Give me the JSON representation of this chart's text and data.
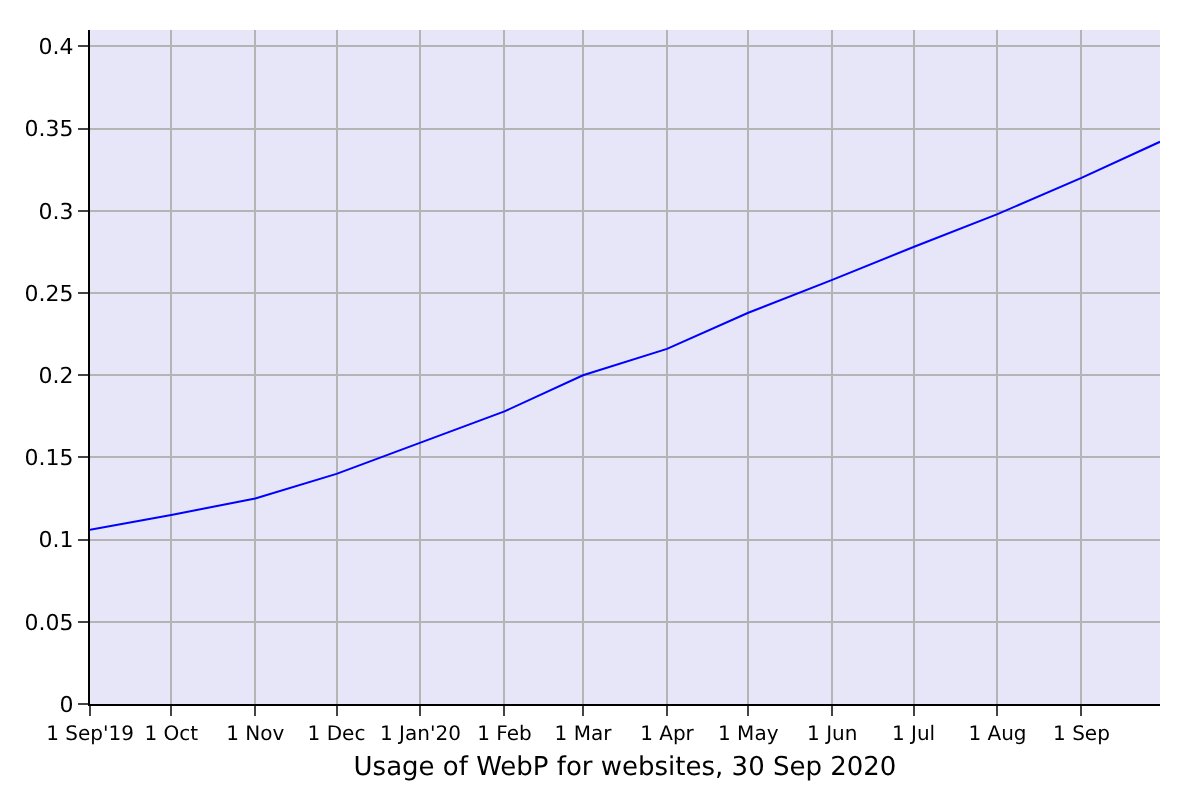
{
  "chart_data": {
    "type": "line",
    "xlabel": "Usage of WebP for websites, 30 Sep 2020",
    "x": [
      "2019-09-01",
      "2019-10-01",
      "2019-11-01",
      "2019-12-01",
      "2020-01-01",
      "2020-02-01",
      "2020-03-01",
      "2020-04-01",
      "2020-05-01",
      "2020-06-01",
      "2020-07-01",
      "2020-08-01",
      "2020-09-01",
      "2020-09-30"
    ],
    "series": [
      {
        "color": "#0000ff",
        "values": [
          0.106,
          0.115,
          0.125,
          0.14,
          0.159,
          0.178,
          0.2,
          0.216,
          0.238,
          0.258,
          0.278,
          0.298,
          0.32,
          0.342
        ]
      }
    ],
    "xlim": [
      "2019-09-01",
      "2020-09-30"
    ],
    "xticks": [
      {
        "value": "2019-09-01",
        "label": "1 Sep'19"
      },
      {
        "value": "2019-10-01",
        "label": "1 Oct"
      },
      {
        "value": "2019-11-01",
        "label": "1 Nov"
      },
      {
        "value": "2019-12-01",
        "label": "1 Dec"
      },
      {
        "value": "2020-01-01",
        "label": "1 Jan'20"
      },
      {
        "value": "2020-02-01",
        "label": "1 Feb"
      },
      {
        "value": "2020-03-01",
        "label": "1 Mar"
      },
      {
        "value": "2020-04-01",
        "label": "1 Apr"
      },
      {
        "value": "2020-05-01",
        "label": "1 May"
      },
      {
        "value": "2020-06-01",
        "label": "1 Jun"
      },
      {
        "value": "2020-07-01",
        "label": "1 Jul"
      },
      {
        "value": "2020-08-01",
        "label": "1 Aug"
      },
      {
        "value": "2020-09-01",
        "label": "1 Sep"
      }
    ],
    "ylim": [
      0,
      0.41
    ],
    "yticks": [
      0,
      0.05,
      0.1,
      0.15,
      0.2,
      0.25,
      0.3,
      0.35,
      0.4
    ],
    "grid": true,
    "marker": "none",
    "line_style": "solid",
    "legend": false
  }
}
